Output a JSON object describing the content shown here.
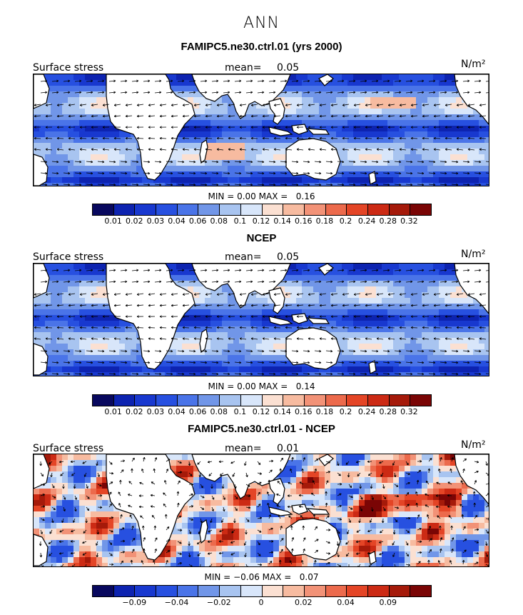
{
  "figure": {
    "title": "ANN"
  },
  "colors": {
    "scale": [
      "#08085e",
      "#0d23b0",
      "#1838cf",
      "#2750e0",
      "#4a74e8",
      "#7196e8",
      "#a8c4f0",
      "#d8e6fa",
      "#fbe0d2",
      "#f7bba0",
      "#f29277",
      "#ec6a4c",
      "#e44526",
      "#cc2a14",
      "#a51a0a",
      "#7a0505"
    ],
    "land": "#ffffff",
    "vector": "#000000"
  },
  "panels": [
    {
      "title": "FAMIPC5.ne30.ctrl.01 (yrs 2000)",
      "left_label": "Surface stress",
      "mean_label": "mean=",
      "mean_value": "0.05",
      "units": "N/m²",
      "min_label": "MIN =",
      "min_value": "0.00",
      "max_label": "MAX =",
      "max_value": "0.16",
      "colorbar_ticks": [
        "0.01",
        "0.02",
        "0.03",
        "0.04",
        "0.06",
        "0.08",
        "0.1",
        "0.12",
        "0.14",
        "0.16",
        "0.18",
        "0.2",
        "0.24",
        "0.28",
        "0.32"
      ],
      "map_kind": "model"
    },
    {
      "title": "NCEP",
      "left_label": "Surface stress",
      "mean_label": "mean=",
      "mean_value": "0.05",
      "units": "N/m²",
      "min_label": "MIN =",
      "min_value": "0.00",
      "max_label": "MAX =",
      "max_value": "0.14",
      "colorbar_ticks": [
        "0.01",
        "0.02",
        "0.03",
        "0.04",
        "0.06",
        "0.08",
        "0.1",
        "0.12",
        "0.14",
        "0.16",
        "0.18",
        "0.2",
        "0.24",
        "0.28",
        "0.32"
      ],
      "map_kind": "obs"
    },
    {
      "title": "FAMIPC5.ne30.ctrl.01 - NCEP",
      "left_label": "Surface stress",
      "mean_label": "mean=",
      "mean_value": "0.01",
      "units": "N/m²",
      "min_label": "MIN =",
      "min_value": "−0.06",
      "max_label": "MAX =",
      "max_value": "0.07",
      "colorbar_ticks": [
        "−0.09",
        "−0.04",
        "−0.02",
        "0",
        "0.02",
        "0.04",
        "0.09"
      ],
      "colorbar_tick_slots": [
        1,
        3,
        5,
        7,
        9,
        11,
        13
      ],
      "map_kind": "diff"
    }
  ]
}
